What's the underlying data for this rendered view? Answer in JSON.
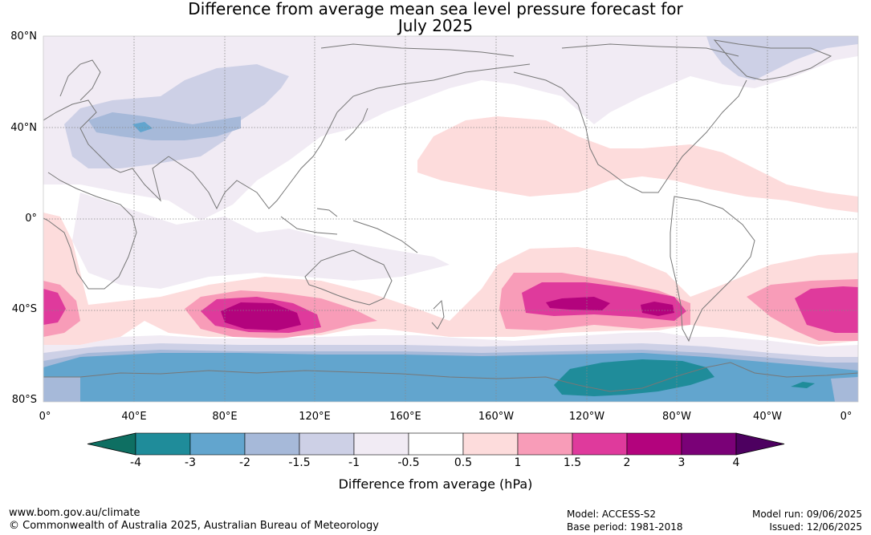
{
  "title": {
    "line1": "Difference from average mean sea level pressure forecast for",
    "line2": "July 2025"
  },
  "latitude_labels": [
    "80°N",
    "40°N",
    "0°",
    "40°S",
    "80°S"
  ],
  "longitude_labels": [
    "0°",
    "40°E",
    "80°E",
    "120°E",
    "160°E",
    "160°W",
    "120°W",
    "80°W",
    "40°W",
    "0°"
  ],
  "colorbar": {
    "ticks": [
      "-4",
      "-3",
      "-2",
      "-1.5",
      "-1",
      "-0.5",
      "0.5",
      "1",
      "1.5",
      "2",
      "3",
      "4"
    ],
    "colors": [
      "#0e6f62",
      "#1f8c9a",
      "#62a5ce",
      "#a6b9d9",
      "#cdd0e6",
      "#f1ebf4",
      "#ffffff",
      "#fddcdc",
      "#f89cb8",
      "#df3a9c",
      "#b3037d",
      "#7a0177",
      "#4d0060"
    ],
    "label": "Difference from average (hPa)"
  },
  "footer": {
    "website": "www.bom.gov.au/climate",
    "copyright": "© Commonwealth of Australia 2025, Australian Bureau of Meteorology",
    "model": "Model: ACCESS-S2",
    "base_period": "Base period: 1981-2018",
    "model_run": "Model run: 09/06/2025",
    "issued": "Issued: 12/06/2025"
  }
}
